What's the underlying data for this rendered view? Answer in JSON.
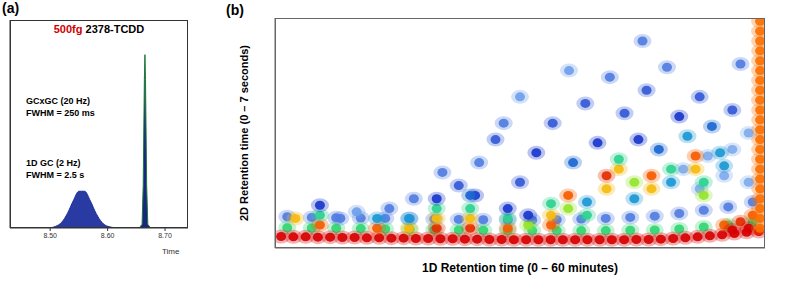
{
  "chart_data": [
    {
      "type": "area",
      "panel_label": "(a)",
      "title": "500fg 2378-TCDD",
      "x_label": "Time",
      "annotations": [
        "GCxGC (20 Hz)",
        "FWHM = 250 ms",
        "1D GC (2 Hz)",
        "FWHM = 2.5 s"
      ],
      "x": [
        8.43,
        8.45,
        8.48,
        8.5,
        8.51,
        8.52,
        8.53,
        8.54,
        8.55,
        8.56,
        8.57,
        8.58,
        8.59,
        8.6,
        8.62,
        8.64,
        8.655,
        8.66,
        8.662,
        8.664,
        8.665,
        8.666,
        8.668,
        8.67,
        8.675,
        8.69,
        8.71,
        8.74
      ],
      "series": [
        {
          "color": "#1f2f9e",
          "values": [
            0,
            0,
            0,
            0.2,
            1,
            3.3,
            8.4,
            15.6,
            21.2,
            21.2,
            15.6,
            8.4,
            3.3,
            1,
            0,
            0,
            0,
            0,
            0,
            0,
            0,
            0,
            0,
            0,
            0,
            0,
            0,
            0
          ]
        },
        {
          "color": "#0c1a7a",
          "values": [
            0,
            0,
            0,
            0,
            0,
            0,
            0,
            0,
            0,
            0,
            0,
            0,
            0,
            0,
            0,
            0,
            0,
            2.1,
            24.9,
            85.7,
            100,
            85.7,
            24.9,
            2.1,
            0,
            0,
            0,
            0
          ]
        }
      ],
      "xlim": [
        8.43,
        8.74
      ],
      "xticks": [
        {
          "value": 8.5,
          "label": "8.50"
        },
        {
          "value": 8.6,
          "label": "8.60"
        },
        {
          "value": 8.7,
          "label": "8.70"
        }
      ],
      "ylim": [
        0,
        120
      ],
      "tick_labels": "x"
    },
    {
      "type": "heatmap",
      "panel_label": "(b)",
      "x_label": "1D Retention time (0 – 60 minutes)",
      "y_label": "2D Retention time (0 – 7 seconds)",
      "xlim": [
        0,
        60
      ],
      "ylim": [
        0,
        7
      ],
      "tick_labels": false,
      "zlim": [
        0,
        1
      ],
      "points": [
        [
          1.5,
          0.95,
          0.3
        ],
        [
          4.5,
          0.93,
          0.3
        ],
        [
          7.5,
          0.92,
          0.3
        ],
        [
          10.5,
          0.91,
          0.3
        ],
        [
          13.5,
          0.9,
          0.3
        ],
        [
          16.5,
          0.89,
          0.3
        ],
        [
          19.5,
          0.88,
          0.3
        ],
        [
          22.5,
          0.87,
          0.3
        ],
        [
          25.5,
          0.86,
          0.3
        ],
        [
          28.5,
          0.85,
          0.3
        ],
        [
          31.5,
          0.85,
          0.3
        ],
        [
          34.5,
          0.86,
          0.3
        ],
        [
          37.5,
          0.88,
          0.3
        ],
        [
          40.5,
          0.9,
          0.3
        ],
        [
          43.5,
          0.93,
          0.3
        ],
        [
          46.5,
          0.97,
          0.3
        ],
        [
          49.5,
          1.05,
          0.3
        ],
        [
          52.5,
          1.15,
          0.3
        ],
        [
          55.5,
          1.25,
          0.3
        ],
        [
          58.5,
          1.4,
          0.3
        ],
        [
          52,
          1.8,
          0.22
        ],
        [
          55,
          2.2,
          0.22
        ],
        [
          58,
          2.0,
          0.22
        ],
        [
          56,
          3.0,
          0.22
        ],
        [
          53,
          2.8,
          0.22
        ],
        [
          58,
          3.5,
          0.22
        ],
        [
          50,
          2.4,
          0.22
        ],
        [
          1.5,
          0.62,
          0.62
        ],
        [
          4.5,
          0.61,
          0.62
        ],
        [
          7.5,
          0.6,
          0.62
        ],
        [
          10.5,
          0.59,
          0.62
        ],
        [
          13.5,
          0.58,
          0.62
        ],
        [
          16.5,
          0.57,
          0.62
        ],
        [
          19.5,
          0.56,
          0.62
        ],
        [
          22.5,
          0.55,
          0.62
        ],
        [
          25.5,
          0.54,
          0.62
        ],
        [
          28.5,
          0.53,
          0.62
        ],
        [
          31.5,
          0.53,
          0.62
        ],
        [
          34.5,
          0.53,
          0.62
        ],
        [
          37.5,
          0.53,
          0.62
        ],
        [
          40.5,
          0.53,
          0.62
        ],
        [
          43.5,
          0.54,
          0.62
        ],
        [
          46.5,
          0.55,
          0.62
        ],
        [
          49.5,
          0.58,
          0.62
        ],
        [
          52.5,
          0.64,
          0.62
        ],
        [
          55.5,
          0.7,
          0.62
        ],
        [
          58.5,
          0.78,
          0.62
        ],
        [
          0.75,
          0.35,
          1
        ],
        [
          2.25,
          0.34,
          1
        ],
        [
          3.75,
          0.34,
          1
        ],
        [
          5.25,
          0.33,
          1
        ],
        [
          6.75,
          0.33,
          1
        ],
        [
          8.25,
          0.32,
          1
        ],
        [
          9.75,
          0.32,
          1
        ],
        [
          11.25,
          0.31,
          1
        ],
        [
          12.75,
          0.31,
          1
        ],
        [
          14.25,
          0.3,
          1
        ],
        [
          15.75,
          0.3,
          1
        ],
        [
          17.25,
          0.29,
          1
        ],
        [
          18.75,
          0.29,
          1
        ],
        [
          20.25,
          0.28,
          1
        ],
        [
          21.75,
          0.28,
          1
        ],
        [
          23.25,
          0.27,
          1
        ],
        [
          24.75,
          0.27,
          1
        ],
        [
          26.25,
          0.26,
          1
        ],
        [
          27.75,
          0.26,
          1
        ],
        [
          29.25,
          0.25,
          1
        ],
        [
          30.75,
          0.25,
          1
        ],
        [
          32.25,
          0.25,
          1
        ],
        [
          33.75,
          0.25,
          1
        ],
        [
          35.25,
          0.25,
          1
        ],
        [
          36.75,
          0.25,
          1
        ],
        [
          38.25,
          0.25,
          1
        ],
        [
          39.75,
          0.25,
          1
        ],
        [
          41.25,
          0.25,
          1
        ],
        [
          42.75,
          0.25,
          1
        ],
        [
          44.25,
          0.26,
          1
        ],
        [
          45.75,
          0.26,
          1
        ],
        [
          47.25,
          0.27,
          1
        ],
        [
          48.75,
          0.29,
          1
        ],
        [
          50.25,
          0.31,
          1
        ],
        [
          51.75,
          0.34,
          1
        ],
        [
          53.25,
          0.37,
          1
        ],
        [
          54.75,
          0.4,
          1
        ],
        [
          56.25,
          0.44,
          1
        ],
        [
          57.75,
          0.48,
          1
        ],
        [
          59.25,
          0.5,
          1
        ],
        [
          55,
          0.7,
          0.9
        ],
        [
          57,
          0.8,
          0.95
        ],
        [
          58.5,
          1.0,
          0.9
        ],
        [
          58,
          0.6,
          1
        ],
        [
          56,
          0.55,
          1
        ],
        [
          8,
          0.9,
          0.3
        ],
        [
          10,
          1.1,
          0.25
        ],
        [
          14,
          1.2,
          0.3
        ],
        [
          17,
          1.5,
          0.3
        ],
        [
          20.5,
          2.3,
          0.3
        ],
        [
          24.5,
          1.6,
          0.4
        ],
        [
          28,
          3.8,
          0.3
        ],
        [
          30,
          4.6,
          0.25
        ],
        [
          36,
          5.4,
          0.25
        ],
        [
          45,
          6.3,
          0.3
        ],
        [
          22.5,
          1.9,
          0.35
        ],
        [
          25,
          2.6,
          0.3
        ],
        [
          27,
          3.3,
          0.35
        ],
        [
          30,
          2.0,
          0.35
        ],
        [
          32,
          2.9,
          0.4
        ],
        [
          34,
          3.8,
          0.35
        ],
        [
          36.5,
          2.6,
          0.45
        ],
        [
          38,
          4.4,
          0.35
        ],
        [
          39.5,
          3.2,
          0.4
        ],
        [
          41,
          5.2,
          0.3
        ],
        [
          42.8,
          4.1,
          0.35
        ],
        [
          44.5,
          3.3,
          0.4
        ],
        [
          45.5,
          4.8,
          0.35
        ],
        [
          47,
          3.0,
          0.45
        ],
        [
          48,
          5.5,
          0.3
        ],
        [
          49.5,
          4.0,
          0.4
        ],
        [
          50.5,
          3.4,
          0.5
        ],
        [
          52,
          4.6,
          0.35
        ],
        [
          53.5,
          3.7,
          0.45
        ],
        [
          55,
          2.5,
          0.5
        ],
        [
          56,
          4.2,
          0.35
        ],
        [
          57,
          5.6,
          0.3
        ],
        [
          2.5,
          0.9,
          0.8
        ],
        [
          5.5,
          0.7,
          0.9
        ],
        [
          5.5,
          1.0,
          0.6
        ],
        [
          5.5,
          1.3,
          0.4
        ],
        [
          12.5,
          0.6,
          0.9
        ],
        [
          12.5,
          0.9,
          0.5
        ],
        [
          16.4,
          0.6,
          0.8
        ],
        [
          16.4,
          0.9,
          0.5
        ],
        [
          19.8,
          0.6,
          0.95
        ],
        [
          19.8,
          0.9,
          0.8
        ],
        [
          19.8,
          1.2,
          0.6
        ],
        [
          19.8,
          1.5,
          0.4
        ],
        [
          23.9,
          0.6,
          0.95
        ],
        [
          23.9,
          0.9,
          0.8
        ],
        [
          23.9,
          1.2,
          0.6
        ],
        [
          23.9,
          1.6,
          0.45
        ],
        [
          28.5,
          0.6,
          0.9
        ],
        [
          28.5,
          0.9,
          0.6
        ],
        [
          28.5,
          1.2,
          0.4
        ],
        [
          31,
          0.7,
          0.7
        ],
        [
          31,
          1.0,
          0.4
        ],
        [
          33.8,
          0.7,
          0.9
        ],
        [
          33.8,
          1.0,
          0.8
        ],
        [
          33.8,
          1.35,
          0.6
        ],
        [
          35.9,
          1.2,
          0.7
        ],
        [
          35.9,
          1.6,
          0.9
        ],
        [
          38.2,
          1.0,
          0.6
        ],
        [
          38.2,
          1.4,
          0.5
        ],
        [
          40.6,
          1.8,
          0.8
        ],
        [
          40.6,
          2.2,
          0.95
        ],
        [
          42.1,
          2.4,
          0.8
        ],
        [
          42.1,
          2.7,
          0.6
        ],
        [
          44,
          1.5,
          0.5
        ],
        [
          44,
          2.0,
          0.7
        ],
        [
          46.1,
          1.8,
          0.8
        ],
        [
          46.1,
          2.2,
          0.9
        ],
        [
          48.5,
          2.4,
          0.6
        ],
        [
          48.5,
          2.0,
          0.5
        ],
        [
          51.5,
          2.4,
          0.8
        ],
        [
          51.5,
          2.8,
          0.9
        ],
        [
          52.5,
          1.6,
          0.7
        ],
        [
          52.5,
          2.0,
          0.6
        ],
        [
          54.5,
          2.9,
          0.5
        ],
        [
          59.4,
          0.6,
          0.88
        ],
        [
          59.4,
          0.9,
          0.88
        ],
        [
          59.4,
          1.2,
          0.88
        ],
        [
          59.4,
          1.5,
          0.88
        ],
        [
          59.4,
          1.8,
          0.88
        ],
        [
          59.4,
          2.1,
          0.88
        ],
        [
          59.4,
          2.4,
          0.88
        ],
        [
          59.4,
          2.7,
          0.88
        ],
        [
          59.4,
          3.0,
          0.88
        ],
        [
          59.4,
          3.3,
          0.88
        ],
        [
          59.4,
          3.6,
          0.88
        ],
        [
          59.4,
          3.9,
          0.88
        ],
        [
          59.4,
          4.2,
          0.88
        ],
        [
          59.4,
          4.5,
          0.88
        ],
        [
          59.4,
          4.8,
          0.88
        ],
        [
          59.4,
          5.1,
          0.88
        ],
        [
          59.4,
          5.4,
          0.88
        ],
        [
          59.4,
          5.7,
          0.88
        ],
        [
          59.4,
          6.0,
          0.88
        ],
        [
          59.4,
          6.3,
          0.88
        ],
        [
          59.4,
          6.6,
          0.88
        ],
        [
          59.4,
          6.9,
          0.88
        ]
      ]
    }
  ]
}
